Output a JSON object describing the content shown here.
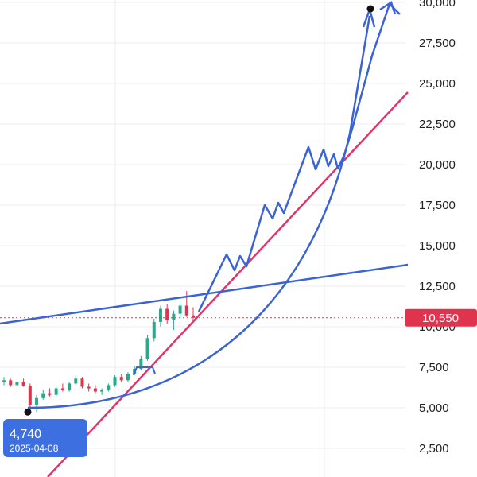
{
  "chart_data": {
    "type": "candlestick",
    "y_axis": {
      "position": "right",
      "ticks": [
        "2,500",
        "5,000",
        "7,500",
        "10,000",
        "12,500",
        "15,000",
        "17,500",
        "20,000",
        "22,500",
        "25,000",
        "27,500",
        "30,000"
      ],
      "tick_values": [
        2500,
        5000,
        7500,
        10000,
        12500,
        15000,
        17500,
        20000,
        22500,
        25000,
        27500,
        30000
      ],
      "range": [
        0,
        30000
      ]
    },
    "grid": true,
    "current_price": {
      "label": "10,550",
      "value": 10550,
      "color": "#e0344e"
    },
    "low_marker": {
      "price_label": "4,740",
      "date_label": "2025-04-08",
      "value": 4740,
      "color": "#3d6fe0"
    },
    "peak_marker": {
      "value": 30000
    },
    "colors": {
      "drawing": "#3a63d8",
      "trendline": "#e0356a",
      "up": "#2aa889",
      "down": "#e0344e"
    },
    "candles_approx": [
      {
        "o": 6600,
        "h": 6900,
        "l": 6400,
        "c": 6700
      },
      {
        "o": 6700,
        "h": 6800,
        "l": 6300,
        "c": 6400
      },
      {
        "o": 6400,
        "h": 6700,
        "l": 6200,
        "c": 6600
      },
      {
        "o": 6600,
        "h": 6800,
        "l": 6300,
        "c": 6350
      },
      {
        "o": 6350,
        "h": 6500,
        "l": 5000,
        "c": 5200
      },
      {
        "o": 5200,
        "h": 5800,
        "l": 4740,
        "c": 5600
      },
      {
        "o": 5600,
        "h": 6100,
        "l": 5500,
        "c": 5900
      },
      {
        "o": 5900,
        "h": 6200,
        "l": 5700,
        "c": 5800
      },
      {
        "o": 5800,
        "h": 6300,
        "l": 5700,
        "c": 6200
      },
      {
        "o": 6200,
        "h": 6500,
        "l": 6000,
        "c": 6100
      },
      {
        "o": 6100,
        "h": 6600,
        "l": 6000,
        "c": 6500
      },
      {
        "o": 6500,
        "h": 7000,
        "l": 6400,
        "c": 6800
      },
      {
        "o": 6800,
        "h": 6900,
        "l": 6200,
        "c": 6300
      },
      {
        "o": 6300,
        "h": 6500,
        "l": 6000,
        "c": 6200
      },
      {
        "o": 6200,
        "h": 6400,
        "l": 5900,
        "c": 6000
      },
      {
        "o": 6000,
        "h": 6200,
        "l": 5800,
        "c": 6100
      },
      {
        "o": 6100,
        "h": 6500,
        "l": 6000,
        "c": 6400
      },
      {
        "o": 6400,
        "h": 7000,
        "l": 6300,
        "c": 6900
      },
      {
        "o": 6900,
        "h": 7100,
        "l": 6600,
        "c": 6700
      },
      {
        "o": 6700,
        "h": 7200,
        "l": 6600,
        "c": 7100
      },
      {
        "o": 7100,
        "h": 7600,
        "l": 7000,
        "c": 7400
      },
      {
        "o": 7400,
        "h": 8200,
        "l": 7300,
        "c": 8000
      },
      {
        "o": 8000,
        "h": 9500,
        "l": 7900,
        "c": 9300
      },
      {
        "o": 9300,
        "h": 10500,
        "l": 9100,
        "c": 10300
      },
      {
        "o": 10300,
        "h": 11300,
        "l": 10000,
        "c": 11100
      },
      {
        "o": 11100,
        "h": 11400,
        "l": 10200,
        "c": 10400
      },
      {
        "o": 10400,
        "h": 11000,
        "l": 9800,
        "c": 10800
      },
      {
        "o": 10800,
        "h": 11500,
        "l": 10500,
        "c": 11300
      },
      {
        "o": 11300,
        "h": 12200,
        "l": 10600,
        "c": 10700
      },
      {
        "o": 10700,
        "h": 11200,
        "l": 10400,
        "c": 10550
      }
    ]
  }
}
